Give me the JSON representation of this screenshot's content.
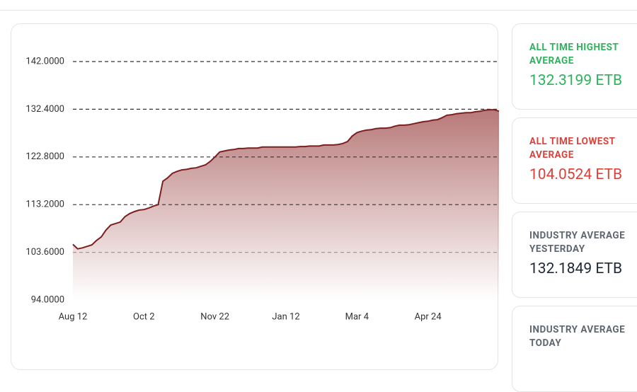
{
  "chart_data": {
    "type": "area",
    "categories": [
      "Aug 12",
      null,
      null,
      null,
      null,
      null,
      null,
      null,
      null,
      null,
      null,
      null,
      null,
      null,
      null,
      "Oct 2",
      null,
      null,
      null,
      null,
      null,
      null,
      null,
      null,
      null,
      null,
      null,
      null,
      null,
      null,
      "Nov 22",
      null,
      null,
      null,
      null,
      null,
      null,
      null,
      null,
      null,
      null,
      null,
      null,
      null,
      null,
      "Jan 12",
      null,
      null,
      null,
      null,
      null,
      null,
      null,
      null,
      null,
      null,
      null,
      null,
      null,
      null,
      "Mar 4",
      null,
      null,
      null,
      null,
      null,
      null,
      null,
      null,
      null,
      null,
      null,
      null,
      null,
      null,
      "Apr 24",
      null,
      null,
      null,
      null,
      null,
      null,
      null,
      null,
      null,
      null,
      null,
      null,
      null,
      null,
      null
    ],
    "values": [
      105.2,
      104.3,
      104.5,
      104.8,
      105.1,
      106.0,
      106.7,
      108.1,
      109.1,
      109.4,
      109.7,
      110.8,
      111.4,
      111.8,
      112.1,
      112.2,
      112.5,
      112.9,
      113.2,
      117.9,
      118.6,
      119.5,
      119.9,
      120.2,
      120.3,
      120.5,
      120.6,
      120.9,
      121.2,
      121.9,
      122.8,
      123.8,
      124.0,
      124.2,
      124.3,
      124.5,
      124.5,
      124.6,
      124.6,
      124.6,
      124.8,
      124.8,
      124.8,
      124.8,
      124.8,
      124.8,
      124.8,
      124.8,
      124.9,
      124.9,
      125.0,
      125.0,
      125.0,
      125.2,
      125.2,
      125.2,
      125.3,
      125.5,
      125.9,
      127.0,
      127.7,
      128.0,
      128.2,
      128.3,
      128.5,
      128.6,
      128.6,
      128.7,
      129.0,
      129.2,
      129.2,
      129.3,
      129.5,
      129.7,
      129.9,
      130.0,
      130.2,
      130.3,
      130.7,
      131.2,
      131.3,
      131.5,
      131.6,
      131.7,
      131.7,
      131.9,
      132.0,
      132.2,
      132.3,
      132.3,
      132.0
    ],
    "color": "#7b1f1f",
    "ylim": [
      94,
      142
    ],
    "yticks": [
      {
        "value": 94,
        "label": "94.0000"
      },
      {
        "value": 103.6,
        "label": "103.6000"
      },
      {
        "value": 113.2,
        "label": "113.2000"
      },
      {
        "value": 122.8,
        "label": "122.8000"
      },
      {
        "value": 132.4,
        "label": "132.4000"
      },
      {
        "value": 142,
        "label": "142.0000"
      }
    ],
    "grid": true
  },
  "cards": [
    {
      "title": "ALL TIME HIGHEST AVERAGE",
      "value": "132.3199 ETB",
      "color": "#2eb35c"
    },
    {
      "title": "ALL TIME LOWEST AVERAGE",
      "value": "104.0524 ETB",
      "color": "#d9433b"
    },
    {
      "title": "INDUSTRY AVERAGE YESTERDAY",
      "value": "132.1849 ETB",
      "color": "#1f2937"
    },
    {
      "title": "INDUSTRY AVERAGE TODAY"
    }
  ]
}
